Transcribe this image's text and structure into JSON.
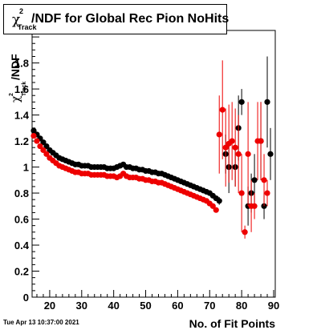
{
  "title": "χ²Track/NDF for Global Rec Pion NoHits",
  "title_parts": {
    "chi": "χ",
    "sup": "2",
    "sub": "Track",
    "rest": "/NDF for Global Rec Pion NoHits"
  },
  "timestamp": "Tue Apr 13 10:37:00 2021",
  "chart_data": {
    "type": "scatter",
    "title": "χ²Track/NDF for Global Rec Pion NoHits",
    "xlabel": "No. of Fit Points",
    "ylabel": "χ²Track/NDF",
    "ylabel_parts": {
      "chi": "χ",
      "sup": "2",
      "sub": "Track",
      "rest": "/NDF"
    },
    "xlim": [
      14.5,
      90.5
    ],
    "ylim": [
      0,
      2.05
    ],
    "x_ticks": [
      20,
      30,
      40,
      50,
      60,
      70,
      80,
      90
    ],
    "y_ticks": [
      0,
      0.2,
      0.4,
      0.6,
      0.8,
      1,
      1.2,
      1.4,
      1.6,
      1.8
    ],
    "y_tick_labels": [
      "0",
      "0.2",
      "0.4",
      "0.6",
      "0.8",
      "1",
      "1.2",
      "1.4",
      "1.6",
      "1.8"
    ],
    "grid": false,
    "colors": {
      "black_series": "#000000",
      "red_series": "#ee0000"
    },
    "series": [
      {
        "color": "#000000",
        "x": [
          15,
          16,
          17,
          18,
          19,
          20,
          21,
          22,
          23,
          24,
          25,
          26,
          27,
          28,
          29,
          30,
          31,
          32,
          33,
          34,
          35,
          36,
          37,
          38,
          39,
          40,
          41,
          42,
          43,
          44,
          45,
          46,
          47,
          48,
          49,
          50,
          51,
          52,
          53,
          54,
          55,
          56,
          57,
          58,
          59,
          60,
          61,
          62,
          63,
          64,
          65,
          66,
          67,
          68,
          69,
          70,
          71,
          72,
          73,
          74,
          75,
          76,
          77,
          78,
          79,
          80,
          81,
          82,
          83,
          84,
          85,
          86,
          87,
          88,
          89
        ],
        "y": [
          1.28,
          1.25,
          1.22,
          1.19,
          1.16,
          1.13,
          1.11,
          1.09,
          1.07,
          1.06,
          1.05,
          1.04,
          1.03,
          1.02,
          1.02,
          1.01,
          1.01,
          1.01,
          1.0,
          1.0,
          1.0,
          1.0,
          1.0,
          0.99,
          0.99,
          0.99,
          1.0,
          1.01,
          1.02,
          1.0,
          1.0,
          0.99,
          0.99,
          0.98,
          0.98,
          0.97,
          0.97,
          0.96,
          0.96,
          0.95,
          0.95,
          0.94,
          0.93,
          0.92,
          0.91,
          0.9,
          0.89,
          0.88,
          0.87,
          0.86,
          0.85,
          0.84,
          0.83,
          0.82,
          0.81,
          0.8,
          0.78,
          0.76,
          0.74,
          null,
          1.1,
          1.0,
          null,
          1.0,
          1.3,
          1.5,
          null,
          0.7,
          0.8,
          0.9,
          null,
          1.2,
          0.7,
          1.5,
          1.1
        ],
        "err": [
          0.005,
          0.005,
          0.005,
          0.005,
          0.005,
          0.005,
          0.005,
          0.005,
          0.005,
          0.005,
          0.005,
          0.005,
          0.005,
          0.005,
          0.005,
          0.005,
          0.005,
          0.005,
          0.005,
          0.005,
          0.005,
          0.005,
          0.005,
          0.005,
          0.005,
          0.005,
          0.005,
          0.005,
          0.005,
          0.005,
          0.005,
          0.005,
          0.005,
          0.005,
          0.005,
          0.005,
          0.005,
          0.005,
          0.005,
          0.005,
          0.005,
          0.005,
          0.005,
          0.005,
          0.005,
          0.005,
          0.005,
          0.005,
          0.005,
          0.005,
          0.005,
          0.005,
          0.005,
          0.005,
          0.01,
          0.01,
          0.01,
          0.02,
          0.03,
          0,
          0.15,
          0.2,
          0,
          0.15,
          0.25,
          0.1,
          0,
          0.15,
          0.15,
          0.2,
          0,
          0.3,
          0.1,
          0.35,
          0.2
        ]
      },
      {
        "color": "#ee0000",
        "x": [
          15,
          16,
          17,
          18,
          19,
          20,
          21,
          22,
          23,
          24,
          25,
          26,
          27,
          28,
          29,
          30,
          31,
          32,
          33,
          34,
          35,
          36,
          37,
          38,
          39,
          40,
          41,
          42,
          43,
          44,
          45,
          46,
          47,
          48,
          49,
          50,
          51,
          52,
          53,
          54,
          55,
          56,
          57,
          58,
          59,
          60,
          61,
          62,
          63,
          64,
          65,
          66,
          67,
          68,
          69,
          70,
          71,
          72,
          73,
          74,
          75,
          76,
          77,
          78,
          79,
          80,
          81,
          82,
          83,
          84,
          85,
          86,
          87,
          88
        ],
        "y": [
          1.24,
          1.2,
          1.16,
          1.13,
          1.1,
          1.07,
          1.05,
          1.03,
          1.01,
          1.0,
          0.99,
          0.98,
          0.97,
          0.96,
          0.96,
          0.95,
          0.95,
          0.95,
          0.94,
          0.94,
          0.94,
          0.94,
          0.94,
          0.93,
          0.93,
          0.93,
          0.92,
          0.93,
          0.95,
          0.93,
          0.92,
          0.92,
          0.92,
          0.91,
          0.91,
          0.9,
          0.9,
          0.89,
          0.89,
          0.88,
          0.88,
          0.87,
          0.86,
          0.85,
          0.84,
          0.83,
          0.82,
          0.81,
          0.8,
          0.79,
          0.78,
          0.77,
          0.76,
          0.75,
          0.74,
          0.72,
          0.7,
          0.67,
          1.25,
          1.44,
          1.15,
          1.18,
          1.2,
          1.15,
          1.1,
          0.8,
          0.5,
          1.1,
          0.7,
          0.7,
          1.2,
          1.2,
          0.9,
          0.8
        ],
        "err": [
          0.005,
          0.005,
          0.005,
          0.005,
          0.005,
          0.005,
          0.005,
          0.005,
          0.005,
          0.005,
          0.005,
          0.005,
          0.005,
          0.005,
          0.005,
          0.005,
          0.005,
          0.005,
          0.005,
          0.005,
          0.005,
          0.005,
          0.005,
          0.005,
          0.005,
          0.005,
          0.005,
          0.005,
          0.005,
          0.005,
          0.005,
          0.005,
          0.005,
          0.005,
          0.005,
          0.005,
          0.005,
          0.005,
          0.005,
          0.005,
          0.005,
          0.005,
          0.005,
          0.005,
          0.005,
          0.005,
          0.005,
          0.005,
          0.005,
          0.005,
          0.005,
          0.005,
          0.005,
          0.005,
          0.005,
          0.01,
          0.01,
          0.02,
          0.3,
          0.38,
          0.3,
          0.3,
          0.3,
          0.3,
          0.3,
          0.3,
          0.05,
          0.4,
          0.2,
          0.1,
          0.3,
          0.3,
          0.2,
          0.1
        ]
      }
    ]
  }
}
